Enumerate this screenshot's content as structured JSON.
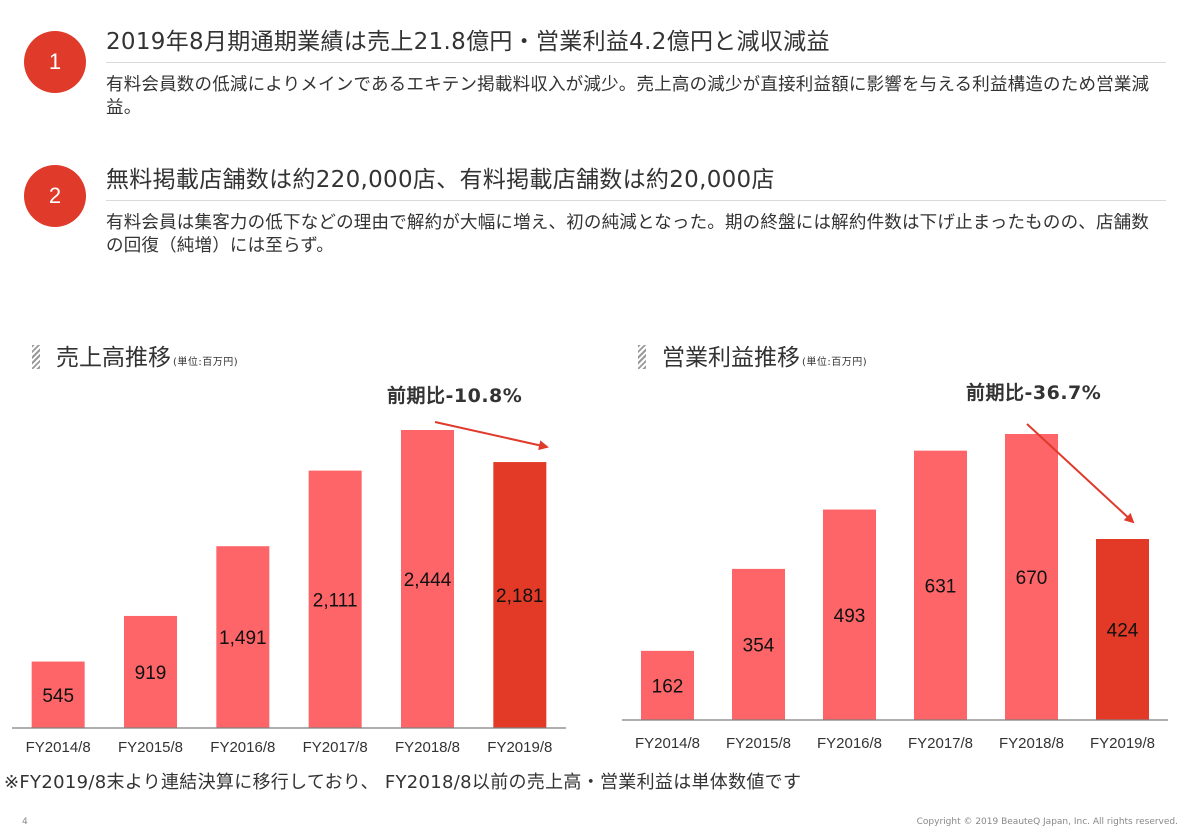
{
  "points": [
    {
      "number": "1",
      "heading": "2019年8月期通期業績は売上21.8億円・営業利益4.2億円と減収減益",
      "description": "有料会員数の低減によりメインであるエキテン掲載料収入が減少。売上高の減少が直接利益額に影響を与える利益構造のため営業減益。"
    },
    {
      "number": "2",
      "heading": "無料掲載店舗数は約220,000店、有料掲載店舗数は約20,000店",
      "description": "有料会員は集客力の低下などの理由で解約が大幅に増え、初の純減となった。期の終盤には解約件数は下げ止まったものの、店舗数の回復（純増）には至らず。"
    }
  ],
  "charts": {
    "sales": {
      "title": "売上高推移",
      "unit": "(単位:百万円)",
      "ratio_label": "前期比-10.8%"
    },
    "profit": {
      "title": "営業利益推移",
      "unit": "(単位:百万円)",
      "ratio_label": "前期比-36.7%"
    }
  },
  "colors": {
    "accent": "#e03a2b",
    "bar": "#fd6568",
    "bar_highlight": "#e23a26",
    "axis": "#7f7f7f"
  },
  "chart_data": [
    {
      "type": "bar",
      "title": "売上高推移",
      "categories": [
        "FY2014/8",
        "FY2015/8",
        "FY2016/8",
        "FY2017/8",
        "FY2018/8",
        "FY2019/8"
      ],
      "values": [
        545,
        919,
        1491,
        2111,
        2444,
        2181
      ],
      "value_labels": [
        "545",
        "919",
        "1,491",
        "2,111",
        "2,444",
        "2,181"
      ],
      "highlight_index": 5,
      "annotation": "前期比-10.8%",
      "ylim": [
        0,
        2444
      ]
    },
    {
      "type": "bar",
      "title": "営業利益推移",
      "categories": [
        "FY2014/8",
        "FY2015/8",
        "FY2016/8",
        "FY2017/8",
        "FY2018/8",
        "FY2019/8"
      ],
      "values": [
        162,
        354,
        493,
        631,
        670,
        424
      ],
      "value_labels": [
        "162",
        "354",
        "493",
        "631",
        "670",
        "424"
      ],
      "highlight_index": 5,
      "annotation": "前期比-36.7%",
      "ylim": [
        0,
        670
      ]
    }
  ],
  "footnote": "※FY2019/8末より連結決算に移行しており、 FY2018/8以前の売上高・営業利益は単体数値です",
  "page_number": "4",
  "copyright": "Copyright © 2019 BeauteQ Japan, Inc. All rights reserved."
}
